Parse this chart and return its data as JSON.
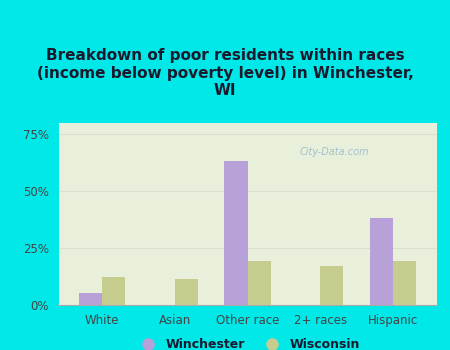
{
  "categories": [
    "White",
    "Asian",
    "Other race",
    "2+ races",
    "Hispanic"
  ],
  "winchester_values": [
    5,
    0,
    63,
    0,
    38
  ],
  "wisconsin_values": [
    12,
    11,
    19,
    17,
    19
  ],
  "winchester_color": "#b8a0d8",
  "wisconsin_color": "#c5cc8e",
  "title": "Breakdown of poor residents within races\n(income below poverty level) in Winchester,\nWI",
  "title_fontsize": 11,
  "title_fontweight": "bold",
  "title_color": "#1a1a2e",
  "ylim": [
    0,
    80
  ],
  "yticks": [
    0,
    25,
    50,
    75
  ],
  "ytick_labels": [
    "0%",
    "25%",
    "50%",
    "75%"
  ],
  "background_color": "#00e8e8",
  "plot_bg_top": "#e8f0dc",
  "plot_bg_bottom": "#f5faf0",
  "legend_labels": [
    "Winchester",
    "Wisconsin"
  ],
  "watermark": "City-Data.com",
  "bar_width": 0.32,
  "grid_color": "#ddddcc",
  "tick_label_fontsize": 8.5,
  "legend_fontsize": 9
}
